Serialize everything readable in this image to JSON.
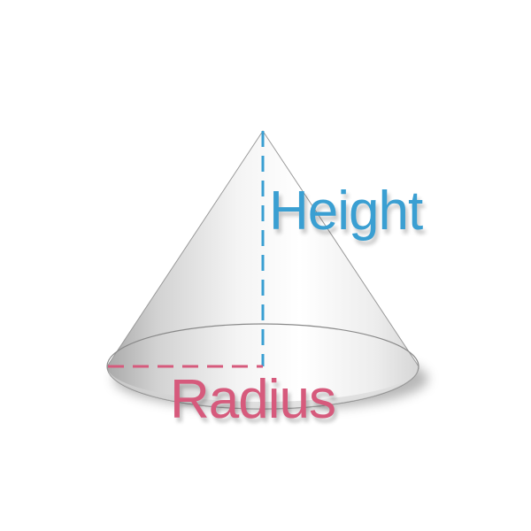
{
  "labels": {
    "height": "Height",
    "radius": "Radius"
  },
  "colors": {
    "height": "#3a9fd2",
    "radius": "#d65a7c",
    "cone_outline": "#8a8a8a"
  }
}
